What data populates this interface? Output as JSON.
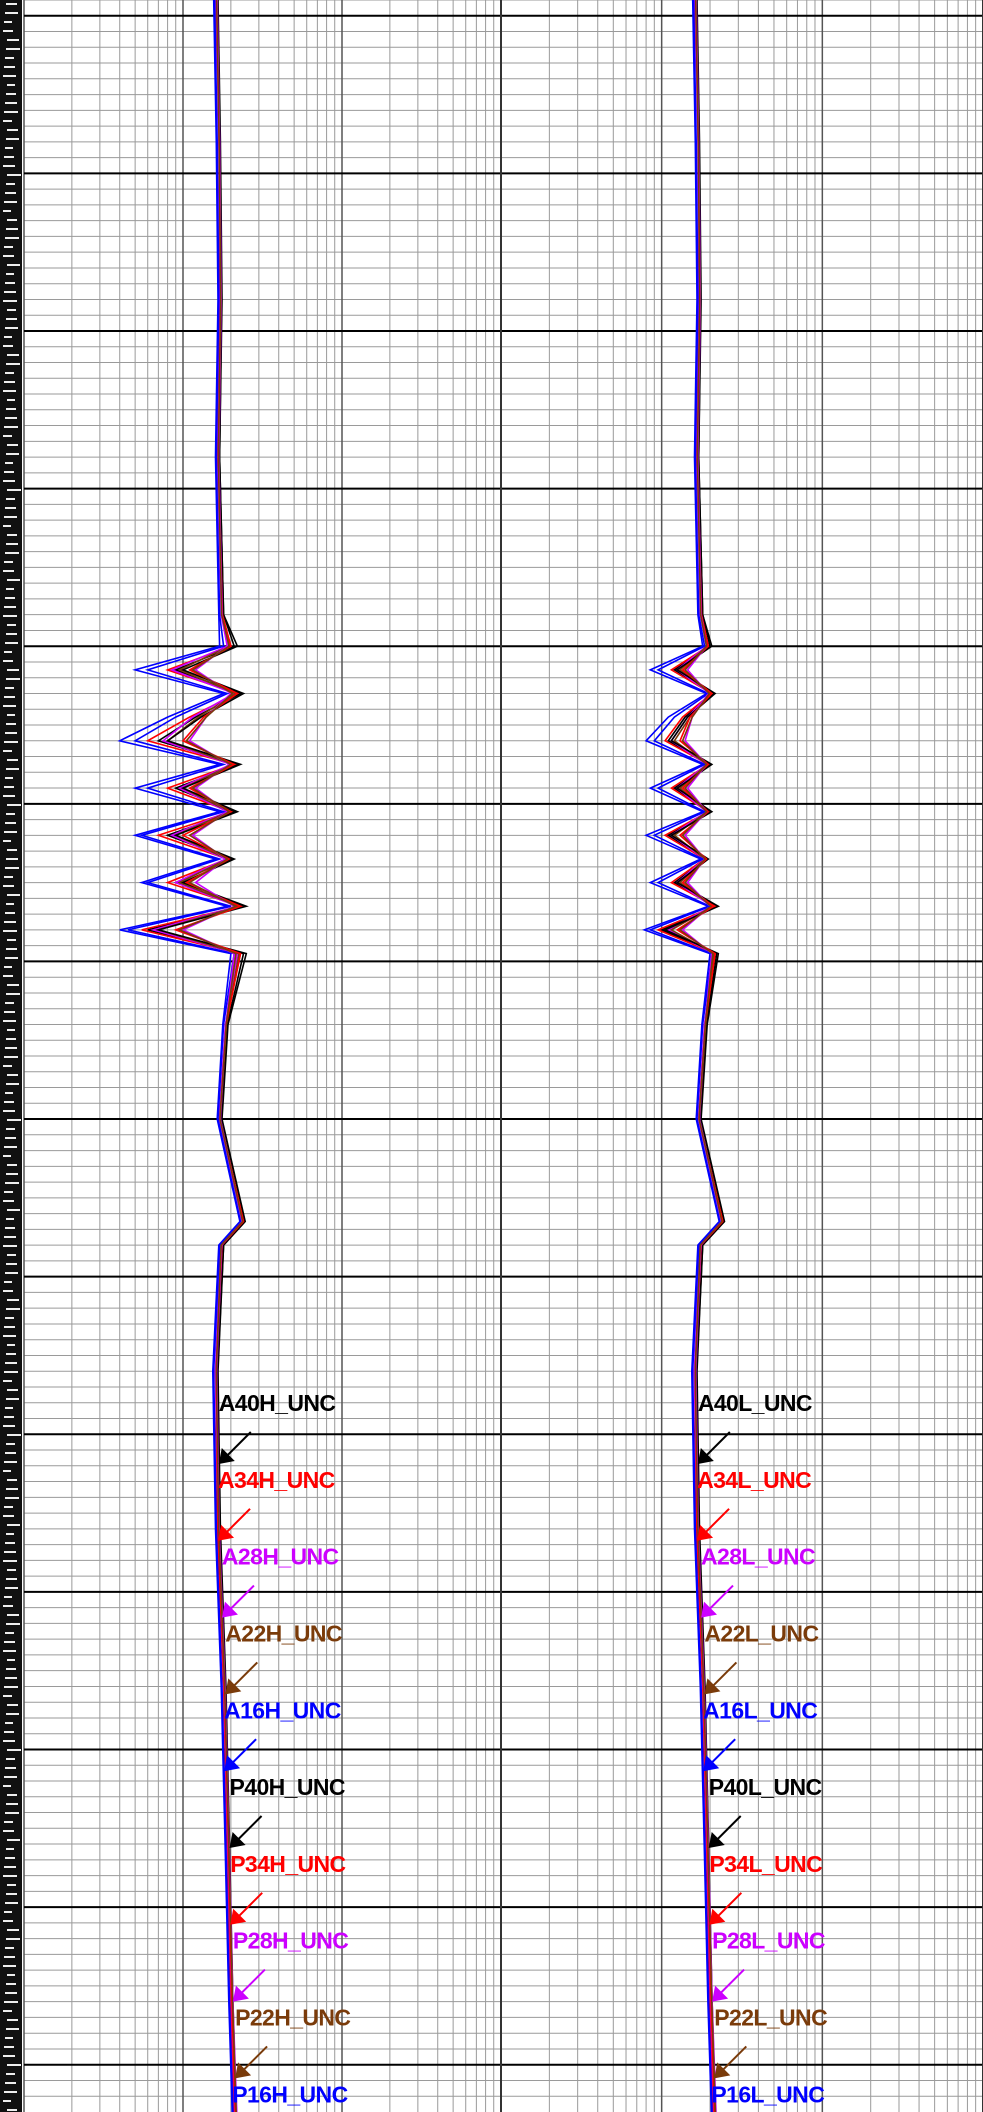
{
  "chart_data": {
    "type": "line",
    "log_x": true,
    "grid": true,
    "ylim": [
      -1,
      133
    ],
    "yticks": [
      0,
      10,
      20,
      30,
      40,
      50,
      60,
      70,
      80,
      90,
      100,
      110,
      120,
      130
    ],
    "minor_yticks": [
      -1,
      0,
      1,
      2,
      3,
      4,
      5,
      6,
      7,
      8,
      9,
      10,
      11,
      12,
      13,
      14,
      15,
      16,
      17,
      18,
      19,
      20,
      21,
      22,
      23,
      24,
      25,
      26,
      27,
      28,
      29,
      30,
      31,
      32,
      33,
      34,
      35,
      36,
      37,
      38,
      39,
      40,
      41,
      42,
      43,
      44,
      45,
      46,
      47,
      48,
      49,
      50,
      51,
      52,
      53,
      54,
      55,
      56,
      57,
      58,
      59,
      60,
      61,
      62,
      63,
      64,
      65,
      66,
      67,
      68,
      69,
      70,
      71,
      72,
      73,
      74,
      75,
      76,
      77,
      78,
      79,
      80,
      81,
      82,
      83,
      84,
      85,
      86,
      87,
      88,
      89,
      90,
      91,
      92,
      93,
      94,
      95,
      96,
      97,
      98,
      99,
      100,
      101,
      102,
      103,
      104,
      105,
      106,
      107,
      108,
      109,
      110,
      111,
      112,
      113,
      114,
      115,
      116,
      117,
      118,
      119,
      120,
      121,
      122,
      123,
      124,
      125,
      126,
      127,
      128,
      129,
      130,
      131,
      132
    ],
    "tracks": [
      {
        "xlim": [
          0.1,
          100
        ],
        "xticks": [
          0.1,
          1,
          10,
          100
        ],
        "minor_xticks": [
          0.2,
          0.3,
          0.4,
          0.5,
          0.6,
          0.7,
          0.8,
          0.9,
          2,
          3,
          4,
          5,
          6,
          7,
          8,
          9,
          20,
          30,
          40,
          50,
          60,
          70,
          80,
          90
        ],
        "depths": [
          -1,
          8,
          18,
          28,
          38,
          40,
          41.5,
          43,
          44.5,
          46,
          47.5,
          49,
          50.5,
          52,
          53.5,
          55,
          56.5,
          58,
          59.5,
          64,
          70,
          76.5,
          78,
          86,
          96,
          106,
          116,
          126,
          133
        ],
        "series": [
          {
            "name": "A40H_UNC",
            "color": "#000000",
            "values": [
              1.65,
              1.7,
              1.75,
              1.7,
              1.8,
              2.1,
              0.9,
              2.3,
              1.2,
              0.7,
              2.2,
              0.9,
              2.1,
              0.8,
              2.0,
              0.9,
              2.4,
              0.6,
              2.4,
              1.9,
              1.75,
              2.45,
              1.8,
              1.65,
              1.7,
              1.85,
              1.95,
              2.05,
              2.15
            ]
          },
          {
            "name": "A34H_UNC",
            "color": "#ff0000",
            "values": [
              1.6,
              1.7,
              1.7,
              1.65,
              1.75,
              2.0,
              0.8,
              2.2,
              1.1,
              0.6,
              2.1,
              0.8,
              2.0,
              0.7,
              1.9,
              0.8,
              2.3,
              0.55,
              2.3,
              1.85,
              1.7,
              2.4,
              1.75,
              1.6,
              1.65,
              1.8,
              1.9,
              2.0,
              2.1
            ]
          },
          {
            "name": "A28H_UNC",
            "color": "#cc00ff",
            "values": [
              1.62,
              1.68,
              1.72,
              1.66,
              1.74,
              1.9,
              0.85,
              2.1,
              1.15,
              0.75,
              2.0,
              0.95,
              1.9,
              0.85,
              1.85,
              0.9,
              2.2,
              0.65,
              2.2,
              1.85,
              1.7,
              2.35,
              1.72,
              1.6,
              1.68,
              1.82,
              1.92,
              2.02,
              2.12
            ]
          },
          {
            "name": "A22H_UNC",
            "color": "#7a3b0a",
            "values": [
              1.64,
              1.7,
              1.74,
              1.68,
              1.76,
              1.95,
              0.95,
              2.15,
              1.25,
              0.8,
              2.05,
              1.0,
              1.95,
              0.9,
              1.9,
              0.95,
              2.25,
              0.7,
              2.25,
              1.88,
              1.72,
              2.38,
              1.74,
              1.62,
              1.7,
              1.84,
              1.94,
              2.04,
              2.14
            ]
          },
          {
            "name": "A16H_UNC",
            "color": "#0000ff",
            "values": [
              1.58,
              1.64,
              1.68,
              1.62,
              1.7,
              1.8,
              0.6,
              1.9,
              0.9,
              0.5,
              1.8,
              0.6,
              1.8,
              0.55,
              1.7,
              0.6,
              2.0,
              0.45,
              2.1,
              1.8,
              1.66,
              2.3,
              1.7,
              1.56,
              1.62,
              1.76,
              1.86,
              1.96,
              2.06
            ]
          },
          {
            "name": "P40H_UNC",
            "color": "#000000",
            "values": [
              1.66,
              1.72,
              1.76,
              1.7,
              1.8,
              2.2,
              1.0,
              2.4,
              1.3,
              0.8,
              2.3,
              1.0,
              2.2,
              0.9,
              2.1,
              1.0,
              2.5,
              0.7,
              2.5,
              1.92,
              1.76,
              2.46,
              1.8,
              1.66,
              1.72,
              1.86,
              1.96,
              2.06,
              2.16
            ]
          },
          {
            "name": "P34H_UNC",
            "color": "#ff0000",
            "values": [
              1.63,
              1.69,
              1.73,
              1.67,
              1.77,
              2.0,
              1.1,
              2.2,
              1.35,
              1.0,
              2.1,
              1.1,
              2.0,
              1.0,
              1.95,
              1.05,
              2.3,
              0.9,
              2.3,
              1.87,
              1.71,
              2.4,
              1.76,
              1.62,
              1.68,
              1.83,
              1.93,
              2.03,
              2.13
            ]
          },
          {
            "name": "P28H_UNC",
            "color": "#cc00ff",
            "values": [
              1.64,
              1.7,
              1.74,
              1.68,
              1.76,
              1.9,
              1.2,
              2.0,
              1.4,
              1.1,
              1.95,
              1.2,
              1.9,
              1.15,
              1.85,
              1.2,
              2.1,
              1.0,
              2.1,
              1.86,
              1.72,
              2.36,
              1.75,
              1.63,
              1.69,
              1.84,
              1.95,
              2.06,
              2.18
            ]
          },
          {
            "name": "P22H_UNC",
            "color": "#7a3b0a",
            "values": [
              1.63,
              1.69,
              1.73,
              1.67,
              1.75,
              1.95,
              1.15,
              2.05,
              1.4,
              1.05,
              2.0,
              1.15,
              1.95,
              1.1,
              1.9,
              1.1,
              2.15,
              0.95,
              2.15,
              1.87,
              1.71,
              2.37,
              1.74,
              1.62,
              1.68,
              1.83,
              1.94,
              2.05,
              2.16
            ]
          },
          {
            "name": "P16H_UNC",
            "color": "#0000ff",
            "values": [
              1.56,
              1.62,
              1.66,
              1.6,
              1.68,
              1.7,
              0.5,
              1.8,
              0.8,
              0.4,
              1.7,
              0.5,
              1.7,
              0.5,
              1.6,
              0.55,
              1.9,
              0.4,
              2.0,
              1.78,
              1.64,
              2.28,
              1.68,
              1.54,
              1.6,
              1.74,
              1.84,
              1.94,
              2.04
            ]
          }
        ]
      },
      {
        "xlim": [
          0.1,
          100
        ],
        "xticks": [
          0.1,
          1,
          10,
          100
        ],
        "minor_xticks": [
          0.2,
          0.3,
          0.4,
          0.5,
          0.6,
          0.7,
          0.8,
          0.9,
          2,
          3,
          4,
          5,
          6,
          7,
          8,
          9,
          20,
          30,
          40,
          50,
          60,
          70,
          80,
          90
        ],
        "depths": [
          -1,
          8,
          18,
          28,
          38,
          40,
          41.5,
          43,
          44.5,
          46,
          47.5,
          49,
          50.5,
          52,
          53.5,
          55,
          56.5,
          58,
          59.5,
          64,
          70,
          76.5,
          78,
          86,
          96,
          106,
          116,
          126,
          133
        ],
        "series": [
          {
            "name": "A40L_UNC",
            "color": "#000000",
            "values": [
              1.65,
              1.7,
              1.75,
              1.7,
              1.8,
              2.0,
              1.2,
              2.1,
              1.4,
              1.1,
              2.0,
              1.2,
              2.0,
              1.1,
              1.9,
              1.2,
              2.2,
              1.0,
              2.2,
              1.9,
              1.75,
              2.45,
              1.8,
              1.65,
              1.7,
              1.85,
              1.95,
              2.05,
              2.15
            ]
          },
          {
            "name": "A34L_UNC",
            "color": "#ff0000",
            "values": [
              1.6,
              1.7,
              1.7,
              1.65,
              1.75,
              1.95,
              1.15,
              2.05,
              1.35,
              1.05,
              1.95,
              1.15,
              1.95,
              1.05,
              1.85,
              1.15,
              2.15,
              0.95,
              2.15,
              1.85,
              1.7,
              2.4,
              1.75,
              1.6,
              1.65,
              1.8,
              1.9,
              2.0,
              2.1
            ]
          },
          {
            "name": "A28L_UNC",
            "color": "#cc00ff",
            "values": [
              1.62,
              1.68,
              1.72,
              1.66,
              1.74,
              1.9,
              1.25,
              2.0,
              1.45,
              1.15,
              1.9,
              1.25,
              1.9,
              1.15,
              1.85,
              1.25,
              2.05,
              1.1,
              2.1,
              1.85,
              1.7,
              2.35,
              1.72,
              1.6,
              1.68,
              1.82,
              1.92,
              2.02,
              2.12
            ]
          },
          {
            "name": "A22L_UNC",
            "color": "#7a3b0a",
            "values": [
              1.64,
              1.7,
              1.74,
              1.68,
              1.76,
              1.92,
              1.3,
              2.02,
              1.5,
              1.2,
              1.92,
              1.3,
              1.92,
              1.2,
              1.86,
              1.3,
              2.08,
              1.15,
              2.12,
              1.88,
              1.72,
              2.38,
              1.74,
              1.62,
              1.7,
              1.84,
              1.94,
              2.04,
              2.14
            ]
          },
          {
            "name": "A16L_UNC",
            "color": "#0000ff",
            "values": [
              1.58,
              1.64,
              1.68,
              1.62,
              1.7,
              1.85,
              0.95,
              1.95,
              1.2,
              0.9,
              1.85,
              0.95,
              1.85,
              0.9,
              1.8,
              0.95,
              2.0,
              0.85,
              2.05,
              1.8,
              1.66,
              2.3,
              1.7,
              1.56,
              1.62,
              1.76,
              1.86,
              1.96,
              2.06
            ]
          },
          {
            "name": "P40L_UNC",
            "color": "#000000",
            "values": [
              1.66,
              1.72,
              1.76,
              1.7,
              1.8,
              2.05,
              1.25,
              2.15,
              1.45,
              1.15,
              2.05,
              1.25,
              2.05,
              1.15,
              1.95,
              1.25,
              2.25,
              1.05,
              2.25,
              1.92,
              1.76,
              2.46,
              1.8,
              1.66,
              1.72,
              1.86,
              1.96,
              2.06,
              2.16
            ]
          },
          {
            "name": "P34L_UNC",
            "color": "#ff0000",
            "values": [
              1.63,
              1.69,
              1.73,
              1.67,
              1.77,
              1.95,
              1.35,
              2.05,
              1.5,
              1.3,
              1.95,
              1.35,
              1.95,
              1.3,
              1.9,
              1.35,
              2.1,
              1.25,
              2.15,
              1.87,
              1.71,
              2.4,
              1.76,
              1.62,
              1.68,
              1.83,
              1.93,
              2.03,
              2.13
            ]
          },
          {
            "name": "P28L_UNC",
            "color": "#cc00ff",
            "values": [
              1.64,
              1.7,
              1.74,
              1.68,
              1.76,
              1.9,
              1.45,
              1.95,
              1.55,
              1.4,
              1.9,
              1.45,
              1.9,
              1.4,
              1.85,
              1.45,
              2.0,
              1.35,
              2.05,
              1.86,
              1.72,
              2.36,
              1.75,
              1.63,
              1.69,
              1.84,
              1.95,
              2.06,
              2.18
            ]
          },
          {
            "name": "P22L_UNC",
            "color": "#7a3b0a",
            "values": [
              1.63,
              1.69,
              1.73,
              1.67,
              1.75,
              1.9,
              1.4,
              1.98,
              1.55,
              1.35,
              1.9,
              1.4,
              1.9,
              1.35,
              1.86,
              1.4,
              2.02,
              1.3,
              2.08,
              1.87,
              1.71,
              2.37,
              1.74,
              1.62,
              1.68,
              1.83,
              1.94,
              2.05,
              2.16
            ]
          },
          {
            "name": "P16L_UNC",
            "color": "#0000ff",
            "values": [
              1.56,
              1.62,
              1.66,
              1.6,
              1.68,
              1.8,
              0.85,
              1.9,
              1.1,
              0.8,
              1.8,
              0.85,
              1.8,
              0.8,
              1.75,
              0.85,
              1.95,
              0.78,
              2.0,
              1.78,
              1.64,
              2.28,
              1.68,
              1.54,
              1.6,
              1.74,
              1.84,
              1.94,
              2.04
            ]
          }
        ]
      }
    ]
  }
}
